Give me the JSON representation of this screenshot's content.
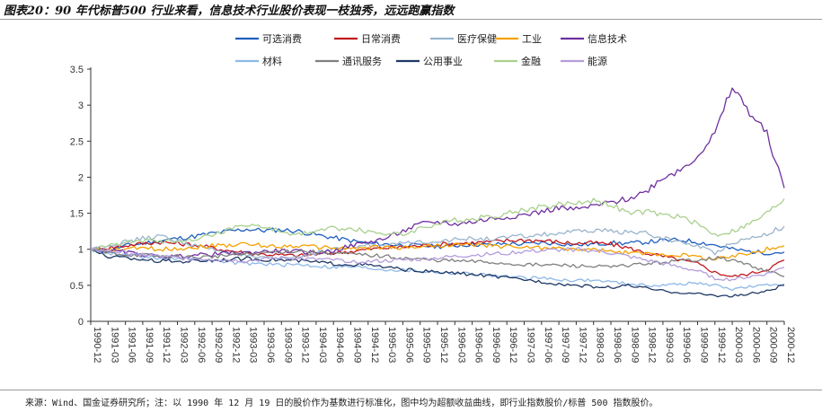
{
  "title": "图表20：90 年代标普500 行业来看，信息技术行业股价表现一枝独秀，远远跑赢指数",
  "source": "来源：Wind、国金证券研究所；注：以 1990 年 12 月 19 日的股价作为基数进行标准化，图中均为超额收益曲线，即行业指数股价/标普 500 指数股价。",
  "chart_data": {
    "type": "line",
    "title": "图表20：90 年代标普500 行业来看，信息技术行业股价表现一枝独秀，远远跑赢指数",
    "xlabel": "",
    "ylabel": "",
    "ylim": [
      0,
      3.5
    ],
    "yticks": [
      "0",
      "0.5",
      "1",
      "1.5",
      "2",
      "2.5",
      "3",
      "3.5"
    ],
    "x": [
      "1990-12",
      "1991-03",
      "1991-06",
      "1991-09",
      "1991-12",
      "1992-03",
      "1992-06",
      "1992-09",
      "1992-12",
      "1993-03",
      "1993-06",
      "1993-09",
      "1993-12",
      "1994-03",
      "1994-06",
      "1994-09",
      "1994-12",
      "1995-03",
      "1995-06",
      "1995-09",
      "1995-12",
      "1996-03",
      "1996-06",
      "1996-09",
      "1996-12",
      "1997-03",
      "1997-06",
      "1997-09",
      "1997-12",
      "1998-03",
      "1998-06",
      "1998-09",
      "1998-12",
      "1999-03",
      "1999-06",
      "1999-09",
      "1999-12",
      "2000-03",
      "2000-06",
      "2000-09",
      "2000-12"
    ],
    "legend_position": "top",
    "series": [
      {
        "name": "可选消费",
        "color": "#1f5fc0",
        "values": [
          1,
          0.98,
          1.05,
          1.08,
          1.12,
          1.15,
          1.18,
          1.22,
          1.25,
          1.28,
          1.26,
          1.27,
          1.25,
          1.2,
          1.16,
          1.12,
          1.08,
          1.07,
          1.06,
          1.05,
          1.04,
          1.05,
          1.07,
          1.06,
          1.08,
          1.07,
          1.09,
          1.08,
          1.06,
          1.07,
          1.09,
          1.08,
          1.1,
          1.12,
          1.13,
          1.1,
          1.06,
          1.0,
          0.97,
          0.95,
          0.96
        ]
      },
      {
        "name": "日常消费",
        "color": "#c0171e",
        "values": [
          1,
          1.02,
          1.05,
          1.08,
          1.1,
          1.08,
          1.06,
          1.02,
          0.98,
          0.95,
          0.93,
          0.92,
          0.91,
          0.93,
          0.95,
          0.97,
          1.0,
          1.02,
          1.03,
          1.05,
          1.07,
          1.08,
          1.09,
          1.1,
          1.12,
          1.13,
          1.12,
          1.1,
          1.08,
          1.09,
          1.07,
          1.02,
          0.95,
          0.9,
          0.85,
          0.8,
          0.68,
          0.62,
          0.66,
          0.72,
          0.85
        ]
      },
      {
        "name": "医疗保健",
        "color": "#9ab4cc",
        "values": [
          1,
          1.05,
          1.1,
          1.15,
          1.18,
          1.12,
          1.05,
          1.0,
          0.95,
          0.9,
          0.87,
          0.88,
          0.9,
          0.95,
          1.0,
          1.03,
          1.05,
          1.07,
          1.08,
          1.1,
          1.12,
          1.13,
          1.15,
          1.14,
          1.16,
          1.18,
          1.2,
          1.22,
          1.24,
          1.26,
          1.25,
          1.24,
          1.22,
          1.15,
          1.1,
          1.05,
          0.95,
          1.1,
          1.15,
          1.22,
          1.32
        ]
      },
      {
        "name": "工业",
        "color": "#f5a000",
        "values": [
          1,
          0.98,
          1.0,
          1.02,
          1.0,
          1.01,
          1.03,
          1.05,
          1.06,
          1.07,
          1.05,
          1.04,
          1.05,
          1.03,
          1.02,
          1.01,
          1.02,
          1.03,
          1.02,
          1.04,
          1.05,
          1.06,
          1.06,
          1.05,
          1.04,
          1.03,
          1.02,
          1.01,
          1.0,
          0.99,
          0.97,
          0.95,
          0.94,
          0.93,
          0.92,
          0.9,
          0.86,
          0.9,
          0.95,
          1.0,
          1.05
        ]
      },
      {
        "name": "信息技术",
        "color": "#7030a0",
        "values": [
          1,
          0.98,
          0.96,
          0.92,
          0.9,
          0.9,
          0.92,
          0.93,
          0.95,
          0.95,
          0.97,
          0.98,
          0.97,
          0.95,
          0.98,
          1.05,
          1.1,
          1.15,
          1.25,
          1.35,
          1.38,
          1.35,
          1.38,
          1.42,
          1.45,
          1.48,
          1.52,
          1.58,
          1.55,
          1.6,
          1.65,
          1.7,
          1.8,
          2.0,
          2.1,
          2.3,
          2.6,
          3.25,
          2.9,
          2.6,
          1.85
        ]
      },
      {
        "name": "材料",
        "color": "#8db8e8",
        "values": [
          1,
          0.95,
          0.92,
          0.9,
          0.87,
          0.88,
          0.86,
          0.84,
          0.82,
          0.8,
          0.8,
          0.78,
          0.79,
          0.77,
          0.75,
          0.76,
          0.74,
          0.72,
          0.71,
          0.7,
          0.68,
          0.67,
          0.66,
          0.64,
          0.62,
          0.6,
          0.6,
          0.58,
          0.57,
          0.57,
          0.55,
          0.52,
          0.5,
          0.5,
          0.52,
          0.53,
          0.5,
          0.45,
          0.48,
          0.5,
          0.52
        ]
      },
      {
        "name": "通讯服务",
        "color": "#7f7f7f",
        "values": [
          1,
          0.95,
          0.93,
          0.92,
          0.9,
          0.9,
          0.89,
          0.9,
          0.92,
          0.93,
          0.95,
          0.97,
          0.98,
          0.96,
          0.95,
          0.93,
          0.92,
          0.9,
          0.88,
          0.86,
          0.85,
          0.84,
          0.83,
          0.82,
          0.8,
          0.79,
          0.78,
          0.78,
          0.77,
          0.76,
          0.75,
          0.78,
          0.8,
          0.82,
          0.84,
          0.86,
          0.88,
          0.85,
          0.78,
          0.7,
          0.62
        ]
      },
      {
        "name": "公用事业",
        "color": "#1f3864",
        "values": [
          1,
          0.9,
          0.88,
          0.86,
          0.84,
          0.83,
          0.84,
          0.85,
          0.86,
          0.87,
          0.86,
          0.85,
          0.84,
          0.82,
          0.8,
          0.79,
          0.78,
          0.75,
          0.72,
          0.7,
          0.68,
          0.67,
          0.65,
          0.63,
          0.6,
          0.58,
          0.55,
          0.52,
          0.5,
          0.48,
          0.47,
          0.5,
          0.46,
          0.42,
          0.4,
          0.38,
          0.36,
          0.35,
          0.38,
          0.42,
          0.5
        ]
      },
      {
        "name": "金融",
        "color": "#a9d08e",
        "values": [
          1,
          1.05,
          1.1,
          1.12,
          1.1,
          1.13,
          1.15,
          1.2,
          1.28,
          1.35,
          1.3,
          1.25,
          1.2,
          1.25,
          1.3,
          1.28,
          1.25,
          1.22,
          1.2,
          1.3,
          1.35,
          1.4,
          1.42,
          1.45,
          1.5,
          1.55,
          1.58,
          1.62,
          1.65,
          1.68,
          1.62,
          1.5,
          1.52,
          1.48,
          1.45,
          1.35,
          1.2,
          1.25,
          1.35,
          1.5,
          1.7
        ]
      },
      {
        "name": "能源",
        "color": "#b39ddb",
        "values": [
          1,
          0.98,
          0.95,
          0.93,
          0.9,
          0.88,
          0.87,
          0.86,
          0.85,
          0.84,
          0.86,
          0.88,
          0.87,
          0.86,
          0.85,
          0.84,
          0.83,
          0.84,
          0.85,
          0.86,
          0.88,
          0.9,
          0.92,
          0.93,
          0.95,
          0.97,
          0.98,
          0.99,
          1.0,
          0.98,
          0.95,
          0.9,
          0.85,
          0.8,
          0.75,
          0.7,
          0.6,
          0.58,
          0.62,
          0.66,
          0.75
        ]
      }
    ]
  }
}
